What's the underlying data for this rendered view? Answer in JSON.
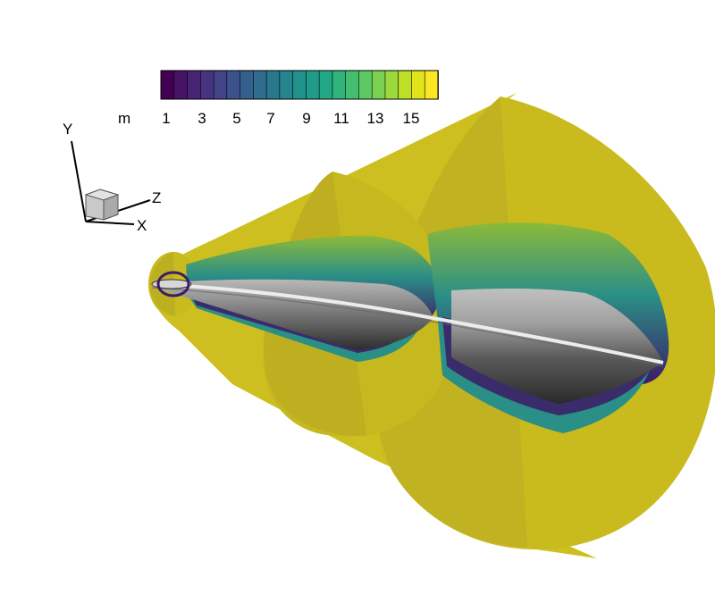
{
  "legend": {
    "variable": "m",
    "ticks": [
      "1",
      "3",
      "5",
      "7",
      "9",
      "11",
      "13",
      "15"
    ],
    "colors": [
      "#440154",
      "#471365",
      "#482475",
      "#463480",
      "#414487",
      "#3b528b",
      "#355f8d",
      "#2f6c8e",
      "#2a788e",
      "#25848e",
      "#21918c",
      "#1e9c89",
      "#22a884",
      "#2fb47c",
      "#44bf70",
      "#5ec962",
      "#7ad151",
      "#9bd93c",
      "#bddf26",
      "#dfe318",
      "#fde725"
    ]
  },
  "axes": {
    "x": "X",
    "y": "Y",
    "z": "Z"
  },
  "colors": {
    "yellow_field": "#cdbf1f",
    "yellow_shadow": "#bdb022",
    "green_band": "#8cba3a",
    "teal_band": "#2a8f86",
    "dark_band": "#3d1b66",
    "wing_light": "#a8a8a8",
    "wing_dark": "#404040"
  }
}
